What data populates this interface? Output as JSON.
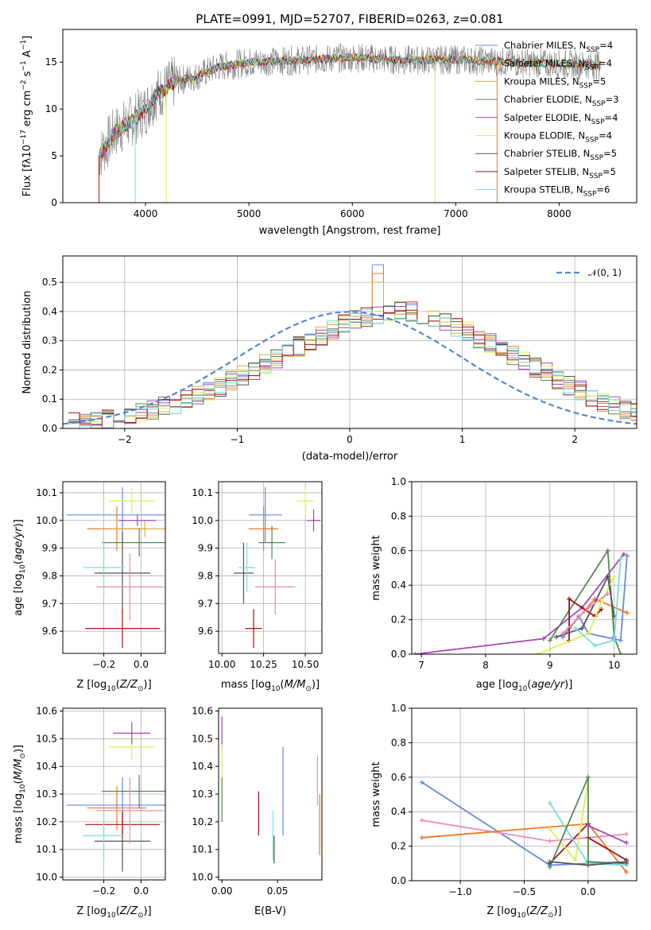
{
  "title": "PLATE=0991, MJD=52707, FIBERID=0263, z=0.081",
  "series_colors": [
    "#6688dd",
    "#ee7722",
    "#ddaa44",
    "#558855",
    "#aa44bb",
    "#ddee55",
    "#555555",
    "#aa1111",
    "#77dddd",
    "#ee88bb"
  ],
  "chart_data": [
    {
      "type": "line",
      "panel": "spectrum",
      "xlabel": "wavelength [Angstrom, rest frame]",
      "ylabel": "Flux [f$_\\lambda$10$^{-17}$ erg cm$^{-2}$ s$^{-1}$ A$^{-1}$]",
      "xlim": [
        3200,
        8750
      ],
      "ylim": [
        0,
        18.5
      ],
      "xticks": [
        "4000",
        "5000",
        "6000",
        "7000",
        "8000"
      ],
      "yticks": [
        "0",
        "5",
        "10",
        "15"
      ],
      "legend": [
        {
          "name": "Chabrier MILES, N$_{SSP}$=4",
          "color": "#6688dd"
        },
        {
          "name": "Salpeter MILES, N$_{SSP}$=4",
          "color": "#ee7722"
        },
        {
          "name": "Kroupa MILES, N$_{SSP}$=5",
          "color": "#ddaa44"
        },
        {
          "name": "Chabrier ELODIE, N$_{SSP}$=3",
          "color": "#558855"
        },
        {
          "name": "Salpeter ELODIE, N$_{SSP}$=4",
          "color": "#aa44bb"
        },
        {
          "name": "Kroupa ELODIE, N$_{SSP}$=4",
          "color": "#ddee55"
        },
        {
          "name": "Chabrier STELIB, N$_{SSP}$=5",
          "color": "#555555"
        },
        {
          "name": "Salpeter STELIB, N$_{SSP}$=5",
          "color": "#aa1111"
        },
        {
          "name": "Kroupa STELIB, N$_{SSP}$=6",
          "color": "#77dddd"
        }
      ],
      "legend_display": [
        "Chabrier MILES, N",
        "Salpeter MILES, N",
        "Kroupa MILES, N",
        "Chabrier ELODIE, N",
        "Salpeter ELODIE, N",
        "Kroupa ELODIE, N",
        "Chabrier STELIB, N",
        "Salpeter STELIB, N",
        "Kroupa STELIB, N"
      ],
      "legend_sub": "SSP",
      "legend_nssp": [
        "=4",
        "=4",
        "=5",
        "=3",
        "=4",
        "=4",
        "=5",
        "=5",
        "=6"
      ],
      "legend_placement": "upper right",
      "spectrum_x_range": [
        3550,
        8400
      ],
      "spectrum_trend": {
        "x": [
          3550,
          3700,
          3900,
          4000,
          4100,
          4300,
          4500,
          4700,
          5000,
          5500,
          6000,
          6500,
          7000,
          7500,
          8000,
          8400
        ],
        "y": [
          5,
          7.5,
          9,
          10,
          11.5,
          13,
          13.5,
          14.5,
          15,
          15.2,
          15.5,
          15.2,
          15.3,
          15,
          14.8,
          14.7
        ]
      },
      "model_dropouts": [
        {
          "x": 3550,
          "color": "#aa1111"
        },
        {
          "x": 3900,
          "color": "#77dddd"
        },
        {
          "x": 4200,
          "color": "#ddee55"
        },
        {
          "x": 6800,
          "color": "#ddee55"
        },
        {
          "x": 7400,
          "color": "#ee7722"
        }
      ]
    },
    {
      "type": "line",
      "panel": "residual-histogram",
      "xlabel": "(data-model)/error",
      "ylabel": "Normed distribution",
      "xlim": [
        -2.55,
        2.55
      ],
      "ylim": [
        0,
        0.59
      ],
      "xticks": [
        "−2",
        "−1",
        "0",
        "1",
        "2"
      ],
      "yticks": [
        "0.0",
        "0.1",
        "0.2",
        "0.3",
        "0.4",
        "0.5"
      ],
      "grid": true,
      "legend": [
        {
          "name": "$\\mathcal{N}(0,1)$",
          "color": "#5588cc",
          "dashed": true
        }
      ],
      "legend_placement": "upper right",
      "bin_width": 0.1,
      "bin_start": -2.5,
      "base_hist": [
        0.02,
        0.02,
        0.025,
        0.03,
        0.04,
        0.045,
        0.055,
        0.065,
        0.075,
        0.085,
        0.095,
        0.11,
        0.125,
        0.14,
        0.16,
        0.18,
        0.2,
        0.22,
        0.24,
        0.26,
        0.28,
        0.3,
        0.32,
        0.34,
        0.36,
        0.37,
        0.38,
        0.39,
        0.4,
        0.4,
        0.4,
        0.39,
        0.38,
        0.37,
        0.35,
        0.33,
        0.31,
        0.29,
        0.27,
        0.25,
        0.23,
        0.21,
        0.19,
        0.17,
        0.15,
        0.13,
        0.11,
        0.09,
        0.075,
        0.06,
        0.05,
        0.04,
        0.035,
        0.03,
        0.025,
        0.02,
        0.02,
        0.02,
        0.02,
        0.02
      ],
      "peaks": {
        "bin_center": 0.25,
        "values": [
          0.56,
          0.53,
          0.5
        ]
      }
    },
    {
      "type": "scatter",
      "panel": "age-vs-Z",
      "xlabel": "Z [log$_{10}$($Z/Z_\\odot$)]",
      "ylabel": "age  [log$_{10}$($age/yr$)]",
      "xlim": [
        -0.42,
        0.13
      ],
      "ylim": [
        9.52,
        10.14
      ],
      "xticks": [
        "−0.2",
        "0.0"
      ],
      "yticks": [
        "9.6",
        "9.7",
        "9.8",
        "9.9",
        "10.0",
        "10.1"
      ],
      "grid": true,
      "points": [
        {
          "x": -0.1,
          "y": 10.02,
          "xerr": 0.3,
          "yerr": 0.1,
          "c": "#6688dd"
        },
        {
          "x": -0.13,
          "y": 9.97,
          "xerr": 0.16,
          "yerr": 0.08,
          "c": "#ee7722"
        },
        {
          "x": 0.02,
          "y": 9.97,
          "xerr": 0.2,
          "yerr": 0.03,
          "c": "#ddaa44"
        },
        {
          "x": -0.01,
          "y": 9.92,
          "xerr": 0.2,
          "yerr": 0.05,
          "c": "#558855"
        },
        {
          "x": -0.02,
          "y": 10.0,
          "xerr": 0.1,
          "yerr": 0.02,
          "c": "#aa44bb"
        },
        {
          "x": -0.05,
          "y": 10.07,
          "xerr": 0.12,
          "yerr": 0.05,
          "c": "#ddee55"
        },
        {
          "x": -0.1,
          "y": 9.81,
          "xerr": 0.15,
          "yerr": 0.15,
          "c": "#555555"
        },
        {
          "x": -0.1,
          "y": 9.61,
          "xerr": 0.2,
          "yerr": 0.07,
          "c": "#aa1111"
        },
        {
          "x": -0.2,
          "y": 9.83,
          "xerr": 0.11,
          "yerr": 0.1,
          "c": "#77dddd"
        },
        {
          "x": -0.06,
          "y": 9.76,
          "xerr": 0.18,
          "yerr": 0.12,
          "c": "#ee88bb"
        }
      ]
    },
    {
      "type": "scatter",
      "panel": "age-vs-mass",
      "xlabel": "mass [log$_{10}$($M/M_\\odot$)]",
      "ylabel": "",
      "xlim": [
        9.98,
        10.6
      ],
      "ylim": [
        9.52,
        10.14
      ],
      "xticks": [
        "10.00",
        "10.25",
        "10.50"
      ],
      "yticks": [
        "9.6",
        "9.7",
        "9.8",
        "9.9",
        "10.0",
        "10.1"
      ],
      "grid": true,
      "points": [
        {
          "x": 10.26,
          "y": 10.02,
          "xerr": 0.1,
          "yerr": 0.1,
          "c": "#6688dd"
        },
        {
          "x": 10.25,
          "y": 9.97,
          "xerr": 0.09,
          "yerr": 0.08,
          "c": "#ee7722"
        },
        {
          "x": 10.5,
          "y": 10.07,
          "xerr": 0.05,
          "yerr": 0.05,
          "c": "#ddee55"
        },
        {
          "x": 10.3,
          "y": 9.92,
          "xerr": 0.08,
          "yerr": 0.06,
          "c": "#558855"
        },
        {
          "x": 10.55,
          "y": 10.0,
          "xerr": 0.04,
          "yerr": 0.04,
          "c": "#aa44bb"
        },
        {
          "x": 10.13,
          "y": 9.81,
          "xerr": 0.06,
          "yerr": 0.11,
          "c": "#555555"
        },
        {
          "x": 10.19,
          "y": 9.61,
          "xerr": 0.05,
          "yerr": 0.07,
          "c": "#aa1111"
        },
        {
          "x": 10.15,
          "y": 9.83,
          "xerr": 0.05,
          "yerr": 0.09,
          "c": "#77dddd"
        },
        {
          "x": 10.32,
          "y": 9.76,
          "xerr": 0.12,
          "yerr": 0.1,
          "c": "#ee88bb"
        }
      ]
    },
    {
      "type": "line",
      "panel": "mass-weight-vs-age",
      "xlabel": "age  [log$_{10}$($age/yr$)]",
      "ylabel": "mass weight",
      "xlim": [
        6.85,
        10.35
      ],
      "ylim": [
        0,
        1
      ],
      "xticks": [
        "7",
        "8",
        "9",
        "10"
      ],
      "yticks": [
        "0.0",
        "0.2",
        "0.4",
        "0.6",
        "0.8",
        "1.0"
      ],
      "grid": true,
      "series": [
        {
          "c": "#aa44bb",
          "x": [
            6.9,
            8.9,
            9.5,
            10.15
          ],
          "y": [
            0.0,
            0.09,
            0.27,
            0.58
          ]
        },
        {
          "c": "#6688dd",
          "x": [
            9.2,
            9.45,
            9.6,
            10.1,
            10.2
          ],
          "y": [
            0.1,
            0.22,
            0.12,
            0.08,
            0.57
          ]
        },
        {
          "c": "#ee7722",
          "x": [
            9.3,
            9.7,
            10.2
          ],
          "y": [
            0.15,
            0.32,
            0.24
          ]
        },
        {
          "c": "#558855",
          "x": [
            9.0,
            9.9,
            10.0,
            10.1
          ],
          "y": [
            0.08,
            0.6,
            0.1,
            0.0
          ]
        },
        {
          "c": "#aa1111",
          "x": [
            9.3,
            9.3,
            9.7,
            9.8
          ],
          "y": [
            0.08,
            0.32,
            0.22,
            0.26
          ]
        },
        {
          "c": "#ddee55",
          "x": [
            8.8,
            9.6,
            9.8,
            10.0
          ],
          "y": [
            0.0,
            0.12,
            0.3,
            0.45
          ]
        },
        {
          "c": "#555555",
          "x": [
            9.1,
            9.5,
            9.9,
            10.0
          ],
          "y": [
            0.1,
            0.15,
            0.45,
            0.22
          ]
        },
        {
          "c": "#77dddd",
          "x": [
            9.4,
            9.7,
            10.0,
            10.1
          ],
          "y": [
            0.15,
            0.05,
            0.08,
            0.55
          ]
        },
        {
          "c": "#ee88bb",
          "x": [
            9.2,
            9.6,
            9.9
          ],
          "y": [
            0.12,
            0.27,
            0.35
          ]
        }
      ]
    },
    {
      "type": "scatter",
      "panel": "mass-vs-Z",
      "xlabel": "Z [log$_{10}$($Z/Z_\\odot$)]",
      "ylabel": "mass [log$_{10}$($M/M_\\odot$)]",
      "xlim": [
        -0.42,
        0.13
      ],
      "ylim": [
        9.99,
        10.61
      ],
      "xticks": [
        "−0.2",
        "0.0"
      ],
      "yticks": [
        "10.0",
        "10.1",
        "10.2",
        "10.3",
        "10.4",
        "10.5",
        "10.6"
      ],
      "grid": true,
      "points": [
        {
          "x": -0.1,
          "y": 10.26,
          "xerr": 0.3,
          "yerr": 0.1,
          "c": "#6688dd"
        },
        {
          "x": -0.13,
          "y": 10.25,
          "xerr": 0.16,
          "yerr": 0.08,
          "c": "#ee7722"
        },
        {
          "x": -0.05,
          "y": 10.47,
          "xerr": 0.12,
          "yerr": 0.05,
          "c": "#ddee55"
        },
        {
          "x": -0.01,
          "y": 10.31,
          "xerr": 0.2,
          "yerr": 0.06,
          "c": "#558855"
        },
        {
          "x": -0.05,
          "y": 10.52,
          "xerr": 0.1,
          "yerr": 0.04,
          "c": "#aa44bb"
        },
        {
          "x": -0.1,
          "y": 10.13,
          "xerr": 0.15,
          "yerr": 0.11,
          "c": "#555555"
        },
        {
          "x": -0.1,
          "y": 10.19,
          "xerr": 0.2,
          "yerr": 0.05,
          "c": "#aa1111"
        },
        {
          "x": -0.2,
          "y": 10.15,
          "xerr": 0.11,
          "yerr": 0.09,
          "c": "#77dddd"
        },
        {
          "x": -0.06,
          "y": 10.24,
          "xerr": 0.18,
          "yerr": 0.12,
          "c": "#ee88bb"
        }
      ]
    },
    {
      "type": "scatter",
      "panel": "mass-vs-EBV",
      "xlabel": "E(B-V)",
      "ylabel": "",
      "xlim": [
        -0.003,
        0.09
      ],
      "ylim": [
        9.99,
        10.61
      ],
      "xticks": [
        "0.00",
        "0.05"
      ],
      "yticks": [
        "10.0",
        "10.1",
        "10.2",
        "10.3",
        "10.4",
        "10.5",
        "10.6"
      ],
      "grid": false,
      "points": [
        {
          "x": 0.0,
          "y": 10.52,
          "yerr": 0.06,
          "c": "#aa44bb"
        },
        {
          "x": 0.0,
          "y": 10.4,
          "yerr": 0.08,
          "c": "#ddee55"
        },
        {
          "x": 0.0,
          "y": 10.28,
          "yerr": 0.08,
          "c": "#558855"
        },
        {
          "x": 0.033,
          "y": 10.23,
          "yerr": 0.08,
          "c": "#aa1111"
        },
        {
          "x": 0.046,
          "y": 10.15,
          "yerr": 0.09,
          "c": "#77dddd"
        },
        {
          "x": 0.047,
          "y": 10.1,
          "yerr": 0.05,
          "c": "#555555"
        },
        {
          "x": 0.055,
          "y": 10.31,
          "yerr": 0.16,
          "c": "#6688dd"
        },
        {
          "x": 0.086,
          "y": 10.35,
          "yerr": 0.09,
          "c": "#ee88bb"
        },
        {
          "x": 0.088,
          "y": 10.19,
          "yerr": 0.11,
          "c": "#ee7722"
        }
      ]
    },
    {
      "type": "line",
      "panel": "mass-weight-vs-Z",
      "xlabel": "Z [log$_{10}$($Z/Z_\\odot$)]",
      "ylabel": "mass weight",
      "xlim": [
        -1.38,
        0.38
      ],
      "ylim": [
        0,
        1
      ],
      "xticks": [
        "−1.0",
        "−0.5",
        "0.0"
      ],
      "yticks": [
        "0.0",
        "0.2",
        "0.4",
        "0.6",
        "0.8",
        "1.0"
      ],
      "grid": true,
      "series": [
        {
          "c": "#6688dd",
          "x": [
            -1.3,
            -0.3,
            0.3
          ],
          "y": [
            0.57,
            0.09,
            0.11
          ]
        },
        {
          "c": "#ee88bb",
          "x": [
            -1.3,
            -0.3,
            0.3
          ],
          "y": [
            0.35,
            0.23,
            0.27
          ]
        },
        {
          "c": "#ee7722",
          "x": [
            -1.3,
            0.0,
            0.3
          ],
          "y": [
            0.25,
            0.33,
            0.05
          ]
        },
        {
          "c": "#aa1111",
          "x": [
            -0.3,
            0.0,
            0.0,
            0.3
          ],
          "y": [
            0.1,
            0.33,
            0.25,
            0.12
          ]
        },
        {
          "c": "#ddee55",
          "x": [
            -0.3,
            -0.1,
            0.0
          ],
          "y": [
            0.3,
            0.12,
            0.58
          ]
        },
        {
          "c": "#77dddd",
          "x": [
            -0.3,
            0.0,
            0.3
          ],
          "y": [
            0.45,
            0.1,
            0.09
          ]
        },
        {
          "c": "#558855",
          "x": [
            -0.3,
            0.0,
            0.0,
            0.3
          ],
          "y": [
            0.08,
            0.6,
            0.11,
            0.1
          ]
        },
        {
          "c": "#555555",
          "x": [
            -0.3,
            0.0,
            0.3
          ],
          "y": [
            0.11,
            0.09,
            0.11
          ]
        },
        {
          "c": "#aa44bb",
          "x": [
            0.0,
            0.3
          ],
          "y": [
            0.32,
            0.22
          ]
        }
      ]
    }
  ]
}
